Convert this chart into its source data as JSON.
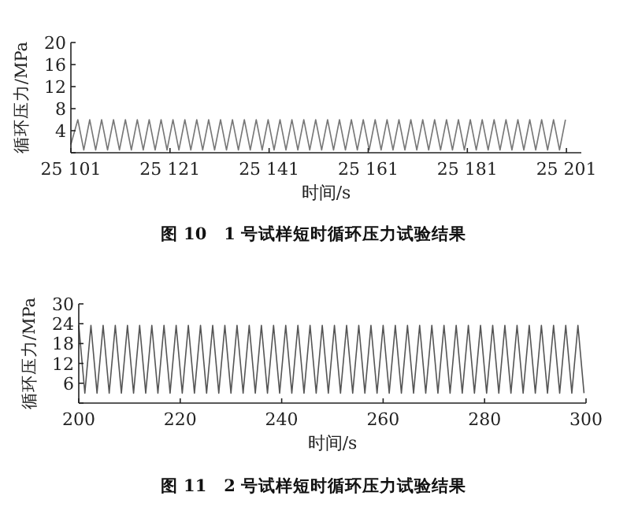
{
  "chart_data": [
    {
      "type": "line",
      "title": "图 10　1 号试样短时循环压力试验结果",
      "xlabel": "时间/s",
      "ylabel": "循环压力/MPa",
      "xlim": [
        25101,
        25204
      ],
      "ylim": [
        0,
        20
      ],
      "xticks": [
        {
          "value": 25101,
          "label": "25 101"
        },
        {
          "value": 25121,
          "label": "25 121"
        },
        {
          "value": 25141,
          "label": "25 141"
        },
        {
          "value": 25161,
          "label": "25 161"
        },
        {
          "value": 25181,
          "label": "25 181"
        },
        {
          "value": 25201,
          "label": "25 201"
        }
      ],
      "yticks": [
        {
          "value": 0,
          "label": null
        },
        4,
        8,
        12,
        16,
        20
      ],
      "x": [
        25101,
        25102.4,
        25103.6,
        25104.8,
        25106,
        25107.2,
        25108.4,
        25109.6,
        25110.8,
        25112,
        25113.2,
        25114.4,
        25115.6,
        25116.8,
        25118,
        25119.2,
        25120.4,
        25121.6,
        25122.8,
        25124,
        25125.2,
        25126.4,
        25127.6,
        25128.8,
        25130,
        25131.2,
        25132.4,
        25133.6,
        25134.8,
        25136,
        25137.2,
        25138.4,
        25139.6,
        25140.8,
        25142,
        25143.2,
        25144.4,
        25145.6,
        25146.8,
        25148,
        25149.2,
        25150.4,
        25151.6,
        25152.8,
        25154,
        25155.2,
        25156.4,
        25157.6,
        25158.8,
        25160,
        25161.2,
        25162.4,
        25163.6,
        25164.8,
        25166,
        25167.2,
        25168.4,
        25169.6,
        25170.8,
        25172,
        25173.2,
        25174.4,
        25175.6,
        25176.8,
        25178,
        25179.2,
        25180.4,
        25181.6,
        25182.8,
        25184,
        25185.2,
        25186.4,
        25187.6,
        25188.8,
        25190,
        25191.2,
        25192.4,
        25193.6,
        25194.8,
        25196,
        25197.2,
        25198.4,
        25199.6,
        25200.8
      ],
      "series": [
        {
          "color": "#777777",
          "values": [
            1.5,
            6,
            0.5,
            6,
            0.5,
            6,
            0.5,
            6,
            0.5,
            6,
            0.5,
            6,
            0.5,
            6,
            0.5,
            6,
            0.5,
            6,
            0.5,
            6,
            0.5,
            6,
            0.5,
            6,
            0.5,
            6,
            0.5,
            6,
            0.5,
            6,
            0.5,
            6,
            0.5,
            6,
            0.5,
            6,
            0.5,
            6,
            0.5,
            6,
            0.5,
            6,
            0.5,
            6,
            0.5,
            6,
            0.5,
            6,
            0.5,
            6,
            0.5,
            6,
            0.5,
            6,
            0.5,
            6,
            0.5,
            6,
            0.5,
            6,
            0.5,
            6,
            0.5,
            6,
            0.5,
            6,
            0.5,
            6,
            0.5,
            6,
            0.5,
            6,
            0.5,
            6,
            0.5,
            6,
            0.5,
            6,
            0.5,
            6,
            0.5,
            6,
            0.5,
            6
          ]
        }
      ]
    },
    {
      "type": "line",
      "title": "图 11　2 号试样短时循环压力试验结果",
      "xlabel": "时间/s",
      "ylabel": "循环压力/MPa",
      "xlim": [
        200,
        300
      ],
      "ylim": [
        0,
        30
      ],
      "xticks": [
        200,
        220,
        240,
        260,
        280,
        300
      ],
      "yticks": [
        {
          "value": 0,
          "label": null
        },
        6,
        12,
        18,
        24,
        30
      ],
      "x": [
        200,
        201.2,
        202.4,
        203.6,
        204.8,
        206,
        207.2,
        208.4,
        209.6,
        210.8,
        212,
        213.2,
        214.4,
        215.6,
        216.8,
        218,
        219.2,
        220.4,
        221.6,
        222.8,
        224,
        225.2,
        226.4,
        227.6,
        228.8,
        230,
        231.2,
        232.4,
        233.6,
        234.8,
        236,
        237.2,
        238.4,
        239.6,
        240.8,
        242,
        243.2,
        244.4,
        245.6,
        246.8,
        248,
        249.2,
        250.4,
        251.6,
        252.8,
        254,
        255.2,
        256.4,
        257.6,
        258.8,
        260,
        261.2,
        262.4,
        263.6,
        264.8,
        266,
        267.2,
        268.4,
        269.6,
        270.8,
        272,
        273.2,
        274.4,
        275.6,
        276.8,
        278,
        279.2,
        280.4,
        281.6,
        282.8,
        284,
        285.2,
        286.4,
        287.6,
        288.8,
        290,
        291.2,
        292.4,
        293.6,
        294.8,
        296,
        297.2,
        298.4,
        299.6
      ],
      "series": [
        {
          "color": "#555555",
          "values": [
            23.5,
            3,
            23.5,
            3,
            23.5,
            3,
            23.5,
            3,
            23.5,
            3,
            23.5,
            3,
            23.5,
            3,
            23.5,
            3,
            23.5,
            3,
            23.5,
            3,
            23.5,
            3,
            23.5,
            3,
            23.5,
            3,
            23.5,
            3,
            23.5,
            3,
            23.5,
            3,
            23.5,
            3,
            23.5,
            3,
            23.5,
            3,
            23.5,
            3,
            23.5,
            3,
            23.5,
            3,
            23.5,
            3,
            23.5,
            3,
            23.5,
            3,
            23.5,
            3,
            23.5,
            3,
            23.5,
            3,
            23.5,
            3,
            23.5,
            3,
            23.5,
            3,
            23.5,
            3,
            23.5,
            3,
            23.5,
            3,
            23.5,
            3,
            23.5,
            3,
            23.5,
            3,
            23.5,
            3,
            23.5,
            3,
            23.5,
            3,
            23.5,
            3,
            23.5,
            3
          ]
        }
      ]
    }
  ]
}
